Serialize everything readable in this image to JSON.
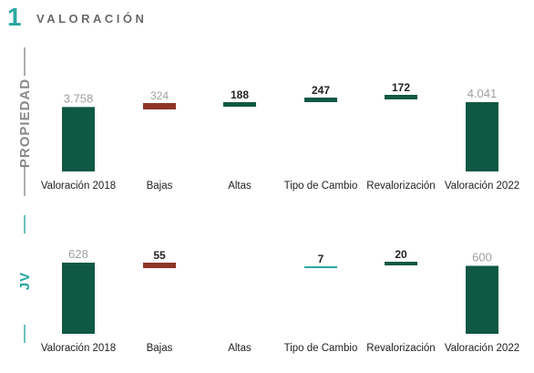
{
  "header": {
    "number": "1",
    "title": "VALORACIÓN"
  },
  "colors": {
    "dark_green": "#0e5844",
    "red": "#8e3527",
    "teal": "#2aa8a1",
    "propiedad_label": "#8a8a8a",
    "jv_label": "#2aa8a1",
    "total_value_text": "#a0a0a0",
    "delta_value_text": "#222222"
  },
  "chart_data": [
    {
      "type": "bar",
      "panel_label": "PROPIEDAD",
      "categories": [
        "Valoración 2018",
        "Bajas",
        "Altas",
        "Tipo de Cambio",
        "Revalorización",
        "Valoración 2022"
      ],
      "value_labels": [
        "3.758",
        "324",
        "188",
        "247",
        "172",
        "4.041"
      ],
      "values": [
        3758,
        -324,
        188,
        247,
        172,
        4041
      ],
      "kinds": [
        "total",
        "decrease",
        "increase",
        "increase",
        "increase",
        "total"
      ]
    },
    {
      "type": "bar",
      "panel_label": "JV",
      "categories": [
        "Valoración 2018",
        "Bajas",
        "Altas",
        "Tipo de Cambio",
        "Revalorización",
        "Valoración 2022"
      ],
      "value_labels": [
        "628",
        "55",
        "",
        "7",
        "20",
        "600"
      ],
      "values": [
        628,
        -55,
        0,
        7,
        20,
        600
      ],
      "kinds": [
        "total",
        "decrease",
        "increase",
        "increase",
        "increase",
        "total"
      ]
    }
  ]
}
